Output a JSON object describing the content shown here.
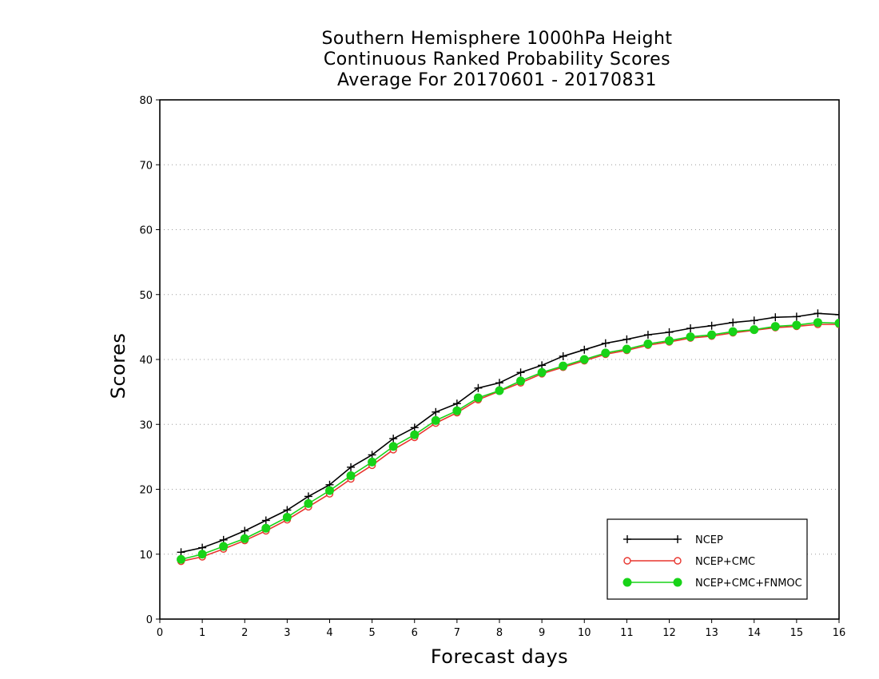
{
  "chart_data": {
    "type": "line",
    "title_lines": [
      "Southern Hemisphere 1000hPa Height",
      "Continuous Ranked Probability Scores",
      "Average For 20170601 - 20170831"
    ],
    "xlabel": "Forecast days",
    "ylabel": "Scores",
    "xlim": [
      0,
      16
    ],
    "ylim": [
      0,
      80
    ],
    "xticks": [
      0,
      1,
      2,
      3,
      4,
      5,
      6,
      7,
      8,
      9,
      10,
      11,
      12,
      13,
      14,
      15,
      16
    ],
    "yticks": [
      0,
      10,
      20,
      30,
      40,
      50,
      60,
      70,
      80
    ],
    "grid": "horizontal dotted",
    "legend_position": "bottom-right",
    "x": [
      0.5,
      1,
      1.5,
      2,
      2.5,
      3,
      3.5,
      4,
      4.5,
      5,
      5.5,
      6,
      6.5,
      7,
      7.5,
      8,
      8.5,
      9,
      9.5,
      10,
      10.5,
      11,
      11.5,
      12,
      12.5,
      13,
      13.5,
      14,
      14.5,
      15,
      15.5,
      16
    ],
    "series": [
      {
        "name": "NCEP",
        "color": "#000000",
        "marker": "plus",
        "values": [
          10.3,
          11.0,
          12.2,
          13.6,
          15.2,
          16.8,
          18.9,
          20.7,
          23.4,
          25.3,
          27.8,
          29.5,
          31.9,
          33.2,
          35.6,
          36.4,
          38.0,
          39.1,
          40.5,
          41.5,
          42.5,
          43.1,
          43.8,
          44.2,
          44.8,
          45.2,
          45.7,
          46.0,
          46.5,
          46.6,
          47.1,
          46.9
        ]
      },
      {
        "name": "NCEP+CMC",
        "color": "#e8352e",
        "marker": "open-circle",
        "values": [
          8.9,
          9.6,
          10.8,
          12.1,
          13.6,
          15.3,
          17.3,
          19.3,
          21.6,
          23.7,
          26.1,
          28.0,
          30.2,
          31.8,
          33.8,
          35.1,
          36.4,
          37.8,
          38.8,
          39.8,
          40.8,
          41.4,
          42.2,
          42.7,
          43.3,
          43.6,
          44.1,
          44.5,
          44.9,
          45.1,
          45.4,
          45.4
        ]
      },
      {
        "name": "NCEP+CMC+FNMOC",
        "color": "#18d318",
        "marker": "filled-circle",
        "values": [
          9.2,
          10.0,
          11.2,
          12.4,
          14.0,
          15.7,
          17.8,
          19.8,
          22.1,
          24.2,
          26.6,
          28.4,
          30.6,
          32.1,
          34.1,
          35.2,
          36.7,
          38.0,
          39.0,
          40.0,
          41.0,
          41.6,
          42.4,
          42.9,
          43.5,
          43.8,
          44.3,
          44.6,
          45.1,
          45.3,
          45.7,
          45.6
        ]
      }
    ]
  }
}
